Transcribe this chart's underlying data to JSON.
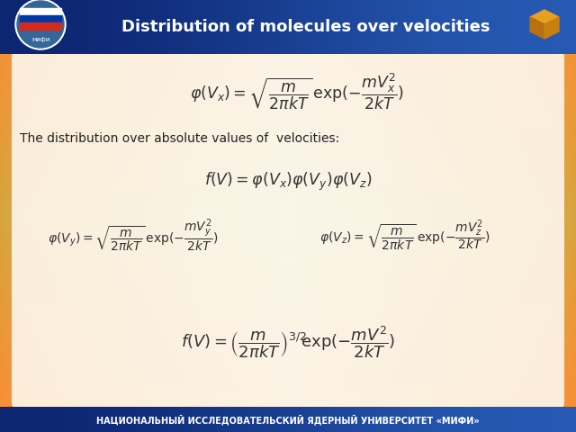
{
  "title": "Distribution of molecules over velocities",
  "footer_text": "НАЦИОНАЛЬНЫЙ ИССЛЕДОВАТЕЛЬСКИЙ ЯДЕРНЫЙ УНИВЕРСИТЕТ «МИФИ»",
  "header_blue": "#1a3a8c",
  "header_blue_mid": "#2255bb",
  "footer_blue": "#1a3a8c",
  "bg_orange_outer": "#f5a020",
  "bg_orange_inner": "#f8c870",
  "content_bg": "#fdf5e8",
  "text1": "The distribution over absolute values of  velocities:"
}
